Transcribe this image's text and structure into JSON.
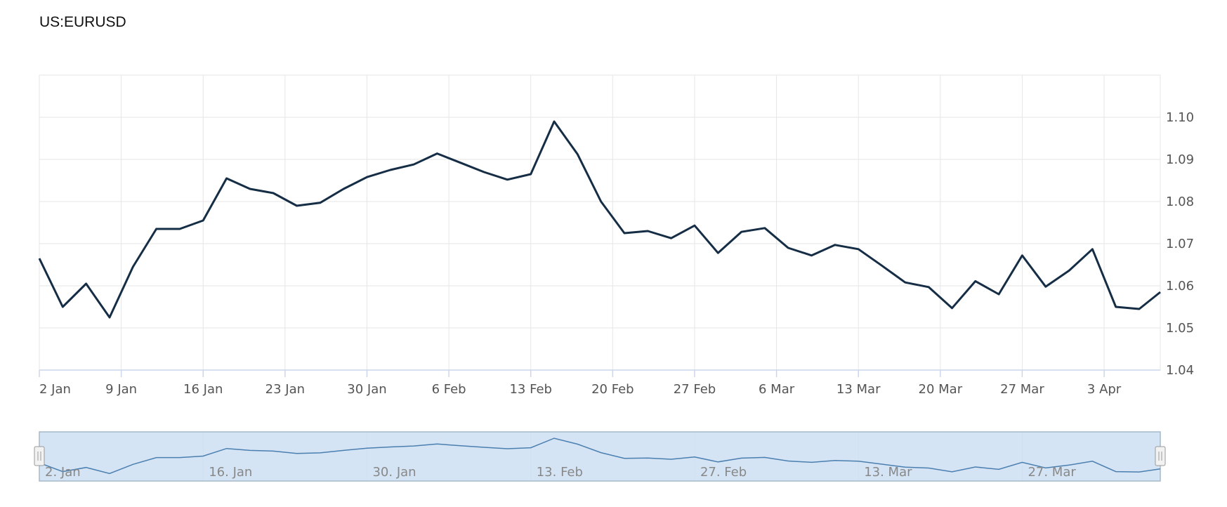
{
  "chart_data": {
    "type": "line",
    "title": "US:EURUSD",
    "xlabel": "",
    "ylabel": "",
    "grid": true,
    "legend": "none",
    "ylim": [
      1.04,
      1.11
    ],
    "xlim": [
      "2023-01-02",
      "2023-04-07"
    ],
    "x_ticks": [
      "2 Jan",
      "9 Jan",
      "16 Jan",
      "23 Jan",
      "30 Jan",
      "6 Feb",
      "13 Feb",
      "20 Feb",
      "27 Feb",
      "6 Mar",
      "13 Mar",
      "20 Mar",
      "27 Mar",
      "3 Apr"
    ],
    "y_ticks": [
      "1.04",
      "1.05",
      "1.06",
      "1.07",
      "1.08",
      "1.09",
      "1.10"
    ],
    "navigator_ticks": [
      "2. Jan",
      "16. Jan",
      "30. Jan",
      "13. Feb",
      "27. Feb",
      "13. Mar",
      "27. Mar"
    ],
    "series": [
      {
        "x": [
          "2023-01-02",
          "2023-01-04",
          "2023-01-06",
          "2023-01-08",
          "2023-01-10",
          "2023-01-12",
          "2023-01-14",
          "2023-01-16",
          "2023-01-18",
          "2023-01-20",
          "2023-01-22",
          "2023-01-24",
          "2023-01-26",
          "2023-01-28",
          "2023-01-30",
          "2023-02-01",
          "2023-02-03",
          "2023-02-05",
          "2023-02-07",
          "2023-02-09",
          "2023-02-11",
          "2023-02-13",
          "2023-02-15",
          "2023-02-17",
          "2023-02-19",
          "2023-02-21",
          "2023-02-23",
          "2023-02-25",
          "2023-02-27",
          "2023-03-01",
          "2023-03-03",
          "2023-03-05",
          "2023-03-07",
          "2023-03-09",
          "2023-03-11",
          "2023-03-13",
          "2023-03-15",
          "2023-03-17",
          "2023-03-19",
          "2023-03-21",
          "2023-03-23",
          "2023-03-25",
          "2023-03-27",
          "2023-03-29",
          "2023-03-31",
          "2023-04-02",
          "2023-04-04",
          "2023-04-06",
          "2023-04-08"
        ],
        "values": [
          1.0665,
          1.055,
          1.0605,
          1.0525,
          1.0645,
          1.0735,
          1.0735,
          1.0755,
          1.0855,
          1.083,
          1.082,
          1.079,
          1.0797,
          1.083,
          1.0858,
          1.0875,
          1.0888,
          1.0914,
          1.0892,
          1.087,
          1.0852,
          1.0865,
          1.099,
          1.0912,
          1.08,
          1.0725,
          1.073,
          1.0713,
          1.0743,
          1.0678,
          1.0728,
          1.0737,
          1.069,
          1.0672,
          1.0697,
          1.0687,
          1.0648,
          1.0608,
          1.0597,
          1.0547,
          1.0611,
          1.058,
          1.0672,
          1.0598,
          1.0636,
          1.0687,
          1.055,
          1.0545,
          1.0585
        ]
      }
    ]
  },
  "navigator": {
    "handle_icon": "grip-handle-icon"
  }
}
